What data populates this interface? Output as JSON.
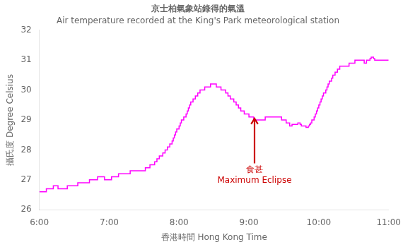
{
  "chart_data": {
    "type": "line",
    "title": "京士柏氣象站錄得的氣溫",
    "subtitle": "Air temperature recorded at the King's Park meteorological station",
    "x_label": "香港時間 Hong Kong Time",
    "y_label": "攝氏度 Degree Celsius",
    "line_style": "step",
    "color": "#FF00FF",
    "grid": false,
    "xlim": [
      6.0,
      11.0
    ],
    "xticks": [
      {
        "value": 6.0,
        "label": "6:00"
      },
      {
        "value": 7.0,
        "label": "7:00"
      },
      {
        "value": 8.0,
        "label": "8:00"
      },
      {
        "value": 9.0,
        "label": "9:00"
      },
      {
        "value": 10.0,
        "label": "10:00"
      },
      {
        "value": 11.0,
        "label": "11:00"
      }
    ],
    "ylim": [
      26,
      32
    ],
    "yticks": [
      26,
      27,
      28,
      29,
      30,
      31,
      32
    ],
    "annotations": [
      {
        "x": 9.08,
        "y_tip": 29.05,
        "y_base": 27.55,
        "texts": [
          "食甚",
          "Maximum Eclipse"
        ],
        "color": "#CC0000"
      }
    ],
    "x": [
      6.0,
      6.017,
      6.033,
      6.05,
      6.067,
      6.083,
      6.1,
      6.117,
      6.133,
      6.15,
      6.167,
      6.183,
      6.2,
      6.217,
      6.233,
      6.25,
      6.267,
      6.283,
      6.3,
      6.317,
      6.333,
      6.35,
      6.367,
      6.383,
      6.4,
      6.417,
      6.433,
      6.45,
      6.467,
      6.483,
      6.5,
      6.517,
      6.533,
      6.55,
      6.567,
      6.583,
      6.6,
      6.617,
      6.633,
      6.65,
      6.667,
      6.683,
      6.7,
      6.717,
      6.733,
      6.75,
      6.767,
      6.783,
      6.8,
      6.817,
      6.833,
      6.85,
      6.867,
      6.883,
      6.9,
      6.917,
      6.933,
      6.95,
      6.967,
      6.983,
      7.0,
      7.017,
      7.033,
      7.05,
      7.067,
      7.083,
      7.1,
      7.117,
      7.133,
      7.15,
      7.167,
      7.183,
      7.2,
      7.217,
      7.233,
      7.25,
      7.267,
      7.283,
      7.3,
      7.317,
      7.333,
      7.35,
      7.367,
      7.383,
      7.4,
      7.417,
      7.433,
      7.45,
      7.467,
      7.483,
      7.5,
      7.517,
      7.533,
      7.55,
      7.567,
      7.583,
      7.6,
      7.617,
      7.633,
      7.65,
      7.667,
      7.683,
      7.7,
      7.717,
      7.733,
      7.75,
      7.767,
      7.783,
      7.8,
      7.817,
      7.833,
      7.85,
      7.867,
      7.883,
      7.9,
      7.917,
      7.933,
      7.95,
      7.967,
      7.983,
      8.0,
      8.017,
      8.033,
      8.05,
      8.067,
      8.083,
      8.1,
      8.117,
      8.133,
      8.15,
      8.167,
      8.183,
      8.2,
      8.217,
      8.233,
      8.25,
      8.267,
      8.283,
      8.3,
      8.317,
      8.333,
      8.35,
      8.367,
      8.383,
      8.4,
      8.417,
      8.433,
      8.45,
      8.467,
      8.483,
      8.5,
      8.517,
      8.533,
      8.55,
      8.567,
      8.583,
      8.6,
      8.617,
      8.633,
      8.65,
      8.667,
      8.683,
      8.7,
      8.717,
      8.733,
      8.75,
      8.767,
      8.783,
      8.8,
      8.817,
      8.833,
      8.85,
      8.867,
      8.883,
      8.9,
      8.917,
      8.933,
      8.95,
      8.967,
      8.983,
      9.0,
      9.017,
      9.033,
      9.05,
      9.067,
      9.083,
      9.1,
      9.117,
      9.133,
      9.15,
      9.167,
      9.183,
      9.2,
      9.217,
      9.233,
      9.25,
      9.267,
      9.283,
      9.3,
      9.317,
      9.333,
      9.35,
      9.367,
      9.383,
      9.4,
      9.417,
      9.433,
      9.45,
      9.467,
      9.483,
      9.5,
      9.517,
      9.533,
      9.55,
      9.567,
      9.583,
      9.6,
      9.617,
      9.633,
      9.65,
      9.667,
      9.683,
      9.7,
      9.717,
      9.733,
      9.75,
      9.767,
      9.783,
      9.8,
      9.817,
      9.833,
      9.85,
      9.867,
      9.883,
      9.9,
      9.917,
      9.933,
      9.95,
      9.967,
      9.983,
      10.0,
      10.017,
      10.033,
      10.05,
      10.067,
      10.083,
      10.1,
      10.117,
      10.133,
      10.15,
      10.167,
      10.183,
      10.2,
      10.217,
      10.233,
      10.25,
      10.267,
      10.283,
      10.3,
      10.317,
      10.333,
      10.35,
      10.367,
      10.383,
      10.4,
      10.417,
      10.433,
      10.45,
      10.467,
      10.483,
      10.5,
      10.517,
      10.533,
      10.55,
      10.567,
      10.583,
      10.6,
      10.617,
      10.633,
      10.65,
      10.667,
      10.683,
      10.7,
      10.717,
      10.733,
      10.75,
      10.767,
      10.783,
      10.8,
      10.817,
      10.833,
      10.85,
      10.867,
      10.883,
      10.9,
      10.917,
      10.933,
      10.95,
      10.967,
      10.983,
      11.0
    ],
    "values": [
      26.6,
      26.6,
      26.6,
      26.6,
      26.6,
      26.6,
      26.7,
      26.7,
      26.7,
      26.7,
      26.7,
      26.7,
      26.8,
      26.8,
      26.8,
      26.8,
      26.7,
      26.7,
      26.7,
      26.7,
      26.7,
      26.7,
      26.7,
      26.7,
      26.8,
      26.8,
      26.8,
      26.8,
      26.8,
      26.8,
      26.8,
      26.8,
      26.8,
      26.9,
      26.9,
      26.9,
      26.9,
      26.9,
      26.9,
      26.9,
      26.9,
      26.9,
      26.9,
      27.0,
      27.0,
      27.0,
      27.0,
      27.0,
      27.0,
      27.0,
      27.1,
      27.1,
      27.1,
      27.1,
      27.1,
      27.1,
      27.0,
      27.0,
      27.0,
      27.0,
      27.0,
      27.0,
      27.1,
      27.1,
      27.1,
      27.1,
      27.1,
      27.1,
      27.2,
      27.2,
      27.2,
      27.2,
      27.2,
      27.2,
      27.2,
      27.2,
      27.2,
      27.2,
      27.3,
      27.3,
      27.3,
      27.3,
      27.3,
      27.3,
      27.3,
      27.3,
      27.3,
      27.3,
      27.3,
      27.3,
      27.3,
      27.4,
      27.4,
      27.4,
      27.4,
      27.5,
      27.5,
      27.5,
      27.5,
      27.6,
      27.6,
      27.7,
      27.7,
      27.8,
      27.8,
      27.8,
      27.9,
      27.9,
      28.0,
      28.0,
      28.1,
      28.1,
      28.2,
      28.2,
      28.3,
      28.4,
      28.5,
      28.6,
      28.7,
      28.7,
      28.8,
      28.9,
      29.0,
      29.0,
      29.1,
      29.1,
      29.2,
      29.3,
      29.4,
      29.5,
      29.6,
      29.6,
      29.7,
      29.7,
      29.8,
      29.8,
      29.9,
      29.9,
      30.0,
      30.0,
      30.0,
      30.0,
      30.1,
      30.1,
      30.1,
      30.1,
      30.1,
      30.2,
      30.2,
      30.2,
      30.2,
      30.2,
      30.1,
      30.1,
      30.1,
      30.1,
      30.0,
      30.0,
      30.0,
      30.0,
      29.9,
      29.9,
      29.8,
      29.8,
      29.7,
      29.7,
      29.7,
      29.6,
      29.6,
      29.5,
      29.5,
      29.4,
      29.4,
      29.3,
      29.3,
      29.3,
      29.2,
      29.2,
      29.2,
      29.2,
      29.1,
      29.1,
      29.1,
      29.1,
      29.0,
      29.0,
      29.0,
      29.0,
      29.0,
      29.0,
      29.0,
      29.0,
      29.0,
      29.0,
      29.1,
      29.1,
      29.1,
      29.1,
      29.1,
      29.1,
      29.1,
      29.1,
      29.1,
      29.1,
      29.1,
      29.1,
      29.1,
      29.1,
      29.0,
      29.0,
      29.0,
      29.0,
      28.9,
      28.9,
      28.9,
      28.8,
      28.8,
      28.85,
      28.85,
      28.85,
      28.85,
      28.85,
      28.9,
      28.9,
      28.85,
      28.8,
      28.8,
      28.8,
      28.8,
      28.75,
      28.75,
      28.8,
      28.85,
      28.9,
      29.0,
      29.0,
      29.1,
      29.2,
      29.3,
      29.4,
      29.5,
      29.6,
      29.7,
      29.8,
      29.9,
      29.9,
      30.0,
      30.1,
      30.2,
      30.3,
      30.3,
      30.4,
      30.5,
      30.5,
      30.6,
      30.6,
      30.7,
      30.7,
      30.8,
      30.8,
      30.8,
      30.8,
      30.8,
      30.8,
      30.8,
      30.8,
      30.9,
      30.9,
      30.9,
      30.9,
      30.9,
      31.0,
      31.0,
      31.0,
      31.0,
      31.0,
      31.0,
      31.0,
      31.0,
      30.9,
      30.9,
      31.0,
      31.0,
      31.0,
      31.05,
      31.1,
      31.1,
      31.05,
      31.0,
      31.0,
      31.0,
      31.0,
      31.0,
      31.0,
      31.0,
      31.0,
      31.0,
      31.0,
      31.0,
      31.0,
      31.0
    ]
  }
}
